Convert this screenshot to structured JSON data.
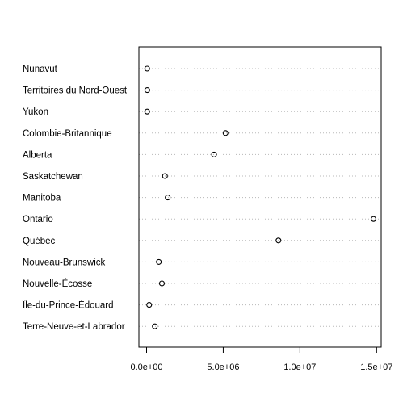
{
  "chart_data": {
    "type": "scatter",
    "subtype": "dotchart",
    "title": "",
    "xlabel": "",
    "ylabel": "",
    "categories": [
      "Nunavut",
      "Territoires du Nord-Ouest",
      "Yukon",
      "Colombie-Britannique",
      "Alberta",
      "Saskatchewan",
      "Manitoba",
      "Ontario",
      "Québec",
      "Nouveau-Brunswick",
      "Nouvelle-Écosse",
      "Île-du-Prince-Édouard",
      "Terre-Neuve-et-Labrador"
    ],
    "values": [
      40000,
      45000,
      40000,
      5150000,
      4400000,
      1200000,
      1380000,
      14800000,
      8600000,
      800000,
      1000000,
      170000,
      540000
    ],
    "xlim": [
      -500000,
      15300000
    ],
    "xticks": [
      0,
      5000000,
      10000000,
      15000000
    ],
    "xtick_labels": [
      "0.0e+00",
      "5.0e+06",
      "1.0e+07",
      "1.5e+07"
    ],
    "grid": "dotted horizontal guides",
    "legend": "none"
  }
}
